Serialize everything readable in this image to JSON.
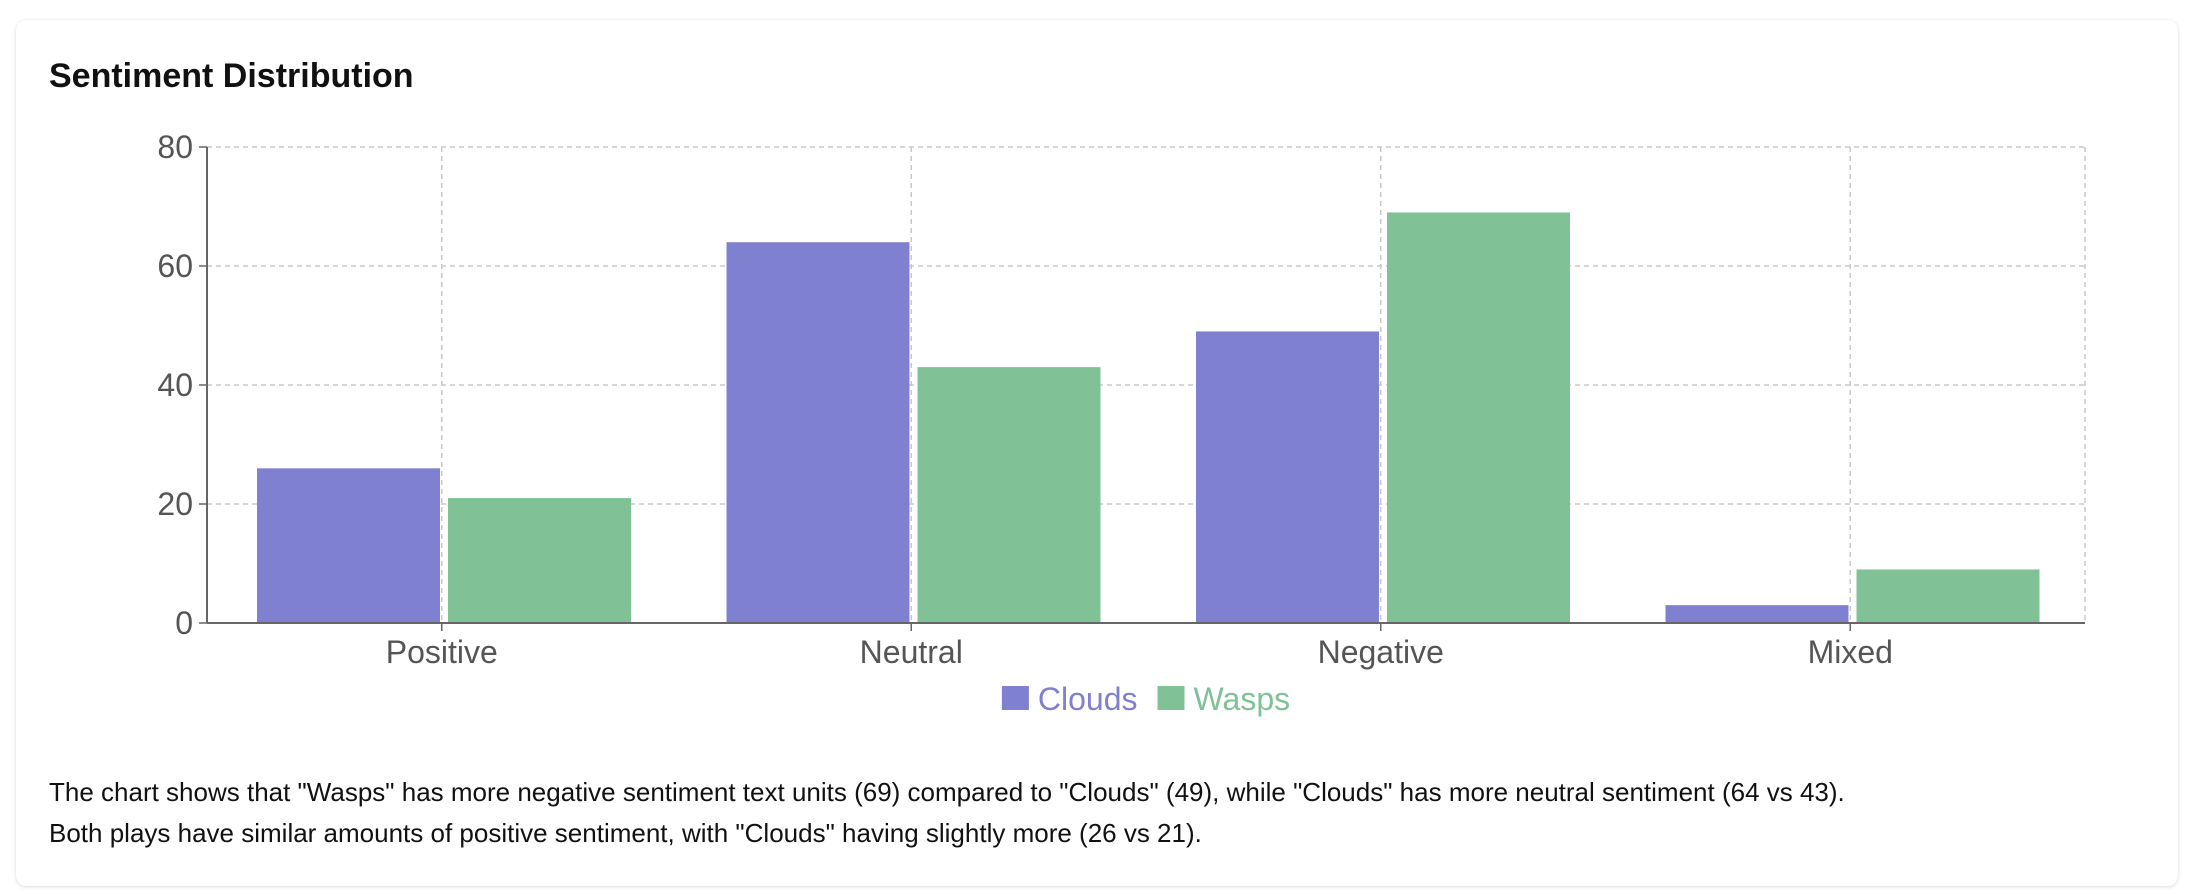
{
  "card": {
    "title": "Sentiment Distribution",
    "summary_lines": [
      "The chart shows that \"Wasps\" has more negative sentiment text units (69) compared to \"Clouds\" (49), while \"Clouds\" has more neutral sentiment (64 vs 43).",
      "Both plays have similar amounts of positive sentiment, with \"Clouds\" having slightly more (26 vs 21)."
    ]
  },
  "chart_data": {
    "type": "bar",
    "title": "Sentiment Distribution",
    "categories": [
      "Positive",
      "Neutral",
      "Negative",
      "Mixed"
    ],
    "series": [
      {
        "name": "Clouds",
        "color": "#8080d0",
        "values": [
          26,
          64,
          49,
          3
        ]
      },
      {
        "name": "Wasps",
        "color": "#80c196",
        "values": [
          21,
          43,
          69,
          9
        ]
      }
    ],
    "ylim": [
      0,
      80
    ],
    "yticks": [
      0,
      20,
      40,
      60,
      80
    ],
    "xlabel": "",
    "ylabel": "",
    "grid": true,
    "legend_position": "bottom"
  }
}
